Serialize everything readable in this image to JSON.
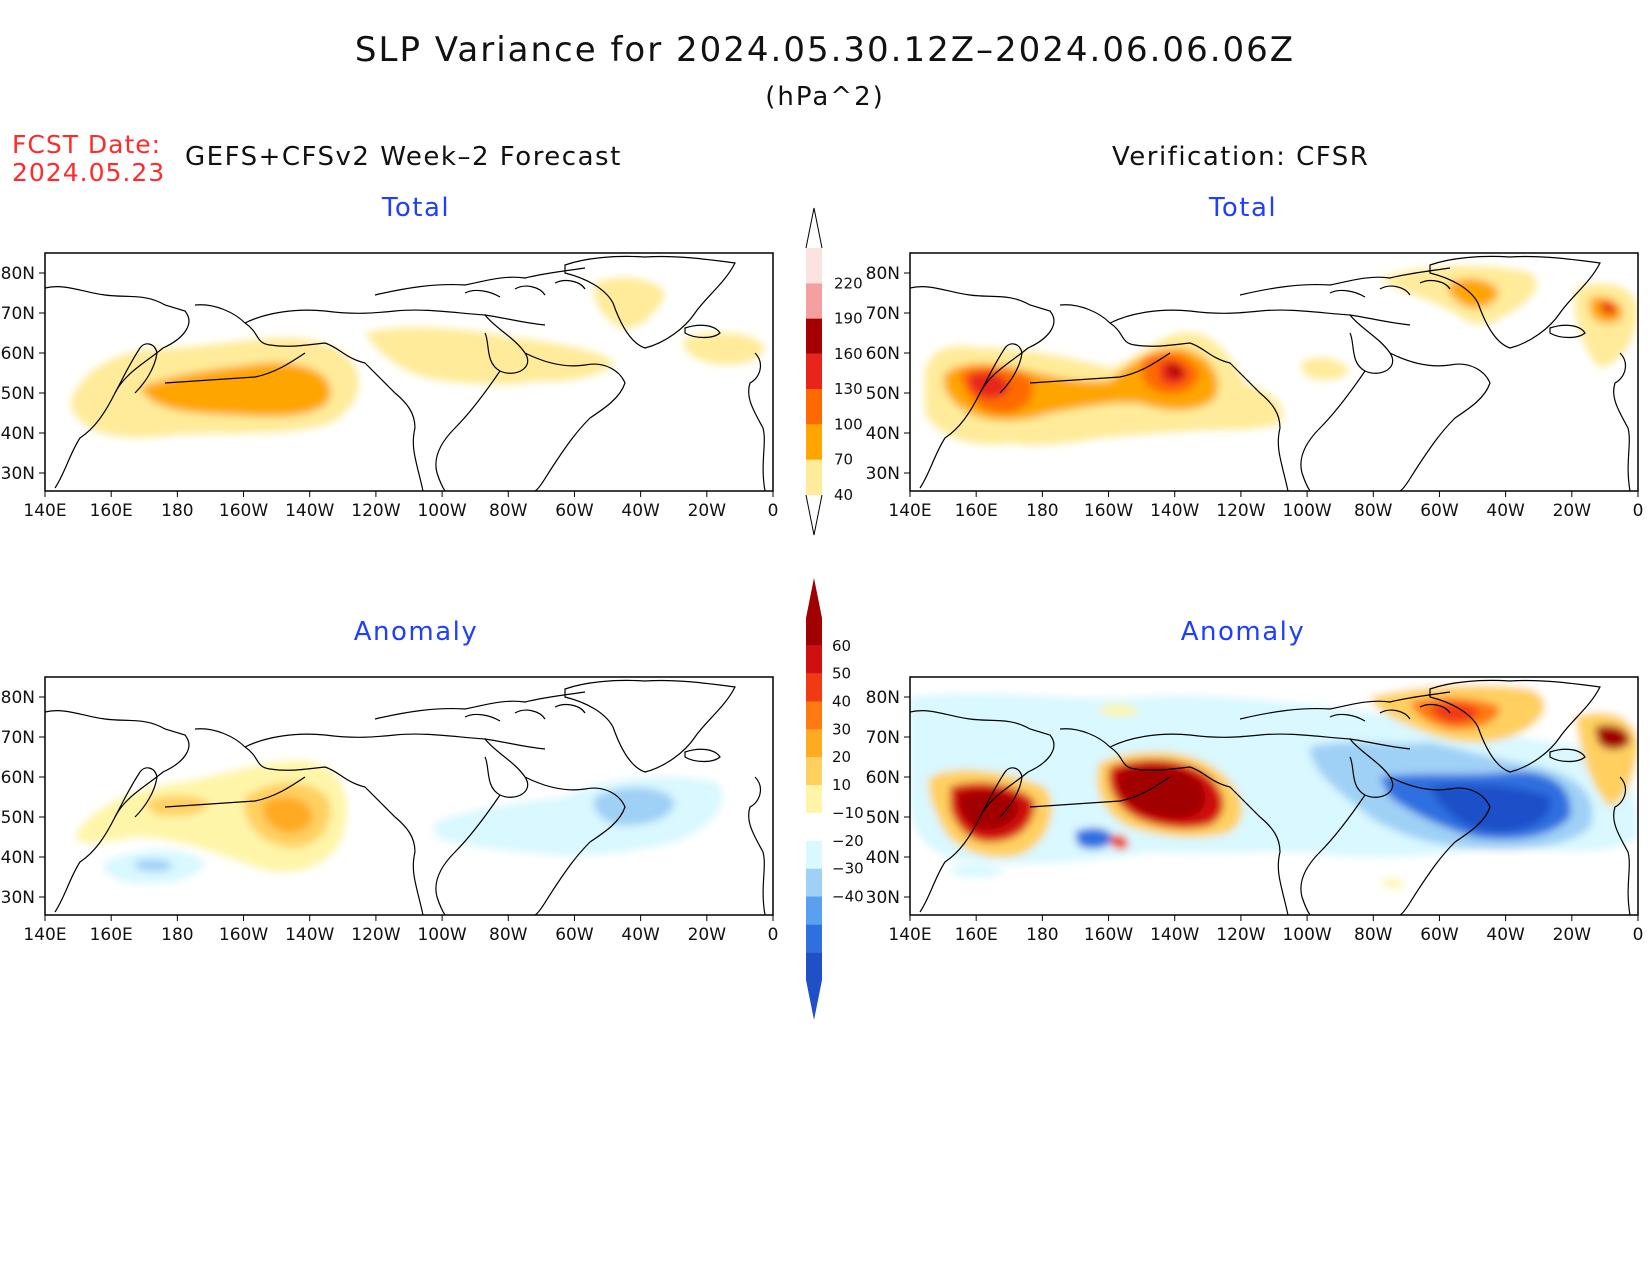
{
  "title": "SLP Variance for 2024.05.30.12Z–2024.06.06.06Z",
  "units": "(hPa^2)",
  "fcst_label": "FCST Date:",
  "fcst_date": "2024.05.23",
  "left_header": "GEFS+CFSv2 Week–2 Forecast",
  "right_header": "Verification: CFSR",
  "panel_titles": {
    "total": "Total",
    "anomaly": "Anomaly"
  },
  "lon_labels": [
    "140E",
    "160E",
    "180",
    "160W",
    "140W",
    "120W",
    "100W",
    "80W",
    "60W",
    "40W",
    "20W",
    "0"
  ],
  "lat_labels": [
    "80N",
    "70N",
    "60N",
    "50N",
    "40N",
    "30N"
  ],
  "total_colorbar": {
    "levels": [
      "40",
      "70",
      "100",
      "130",
      "160",
      "190",
      "220"
    ],
    "colors": [
      "#ffeb99",
      "#ffa500",
      "#ff6a00",
      "#e8251a",
      "#a50000",
      "#f4a0a0",
      "#fde2e2"
    ]
  },
  "anomaly_colorbar": {
    "levels": [
      "60",
      "50",
      "40",
      "30",
      "20",
      "10",
      "−10",
      "−20",
      "−30",
      "−40"
    ],
    "colors": {
      "pos": [
        "#fff5a8",
        "#ffd060",
        "#ffaa20",
        "#ff7a10",
        "#f03a12",
        "#d01010",
        "#a00000"
      ],
      "neg": [
        "#d9f8ff",
        "#9fd0f5",
        "#5aa0f0",
        "#2f70e0",
        "#1f50c8"
      ]
    }
  }
}
